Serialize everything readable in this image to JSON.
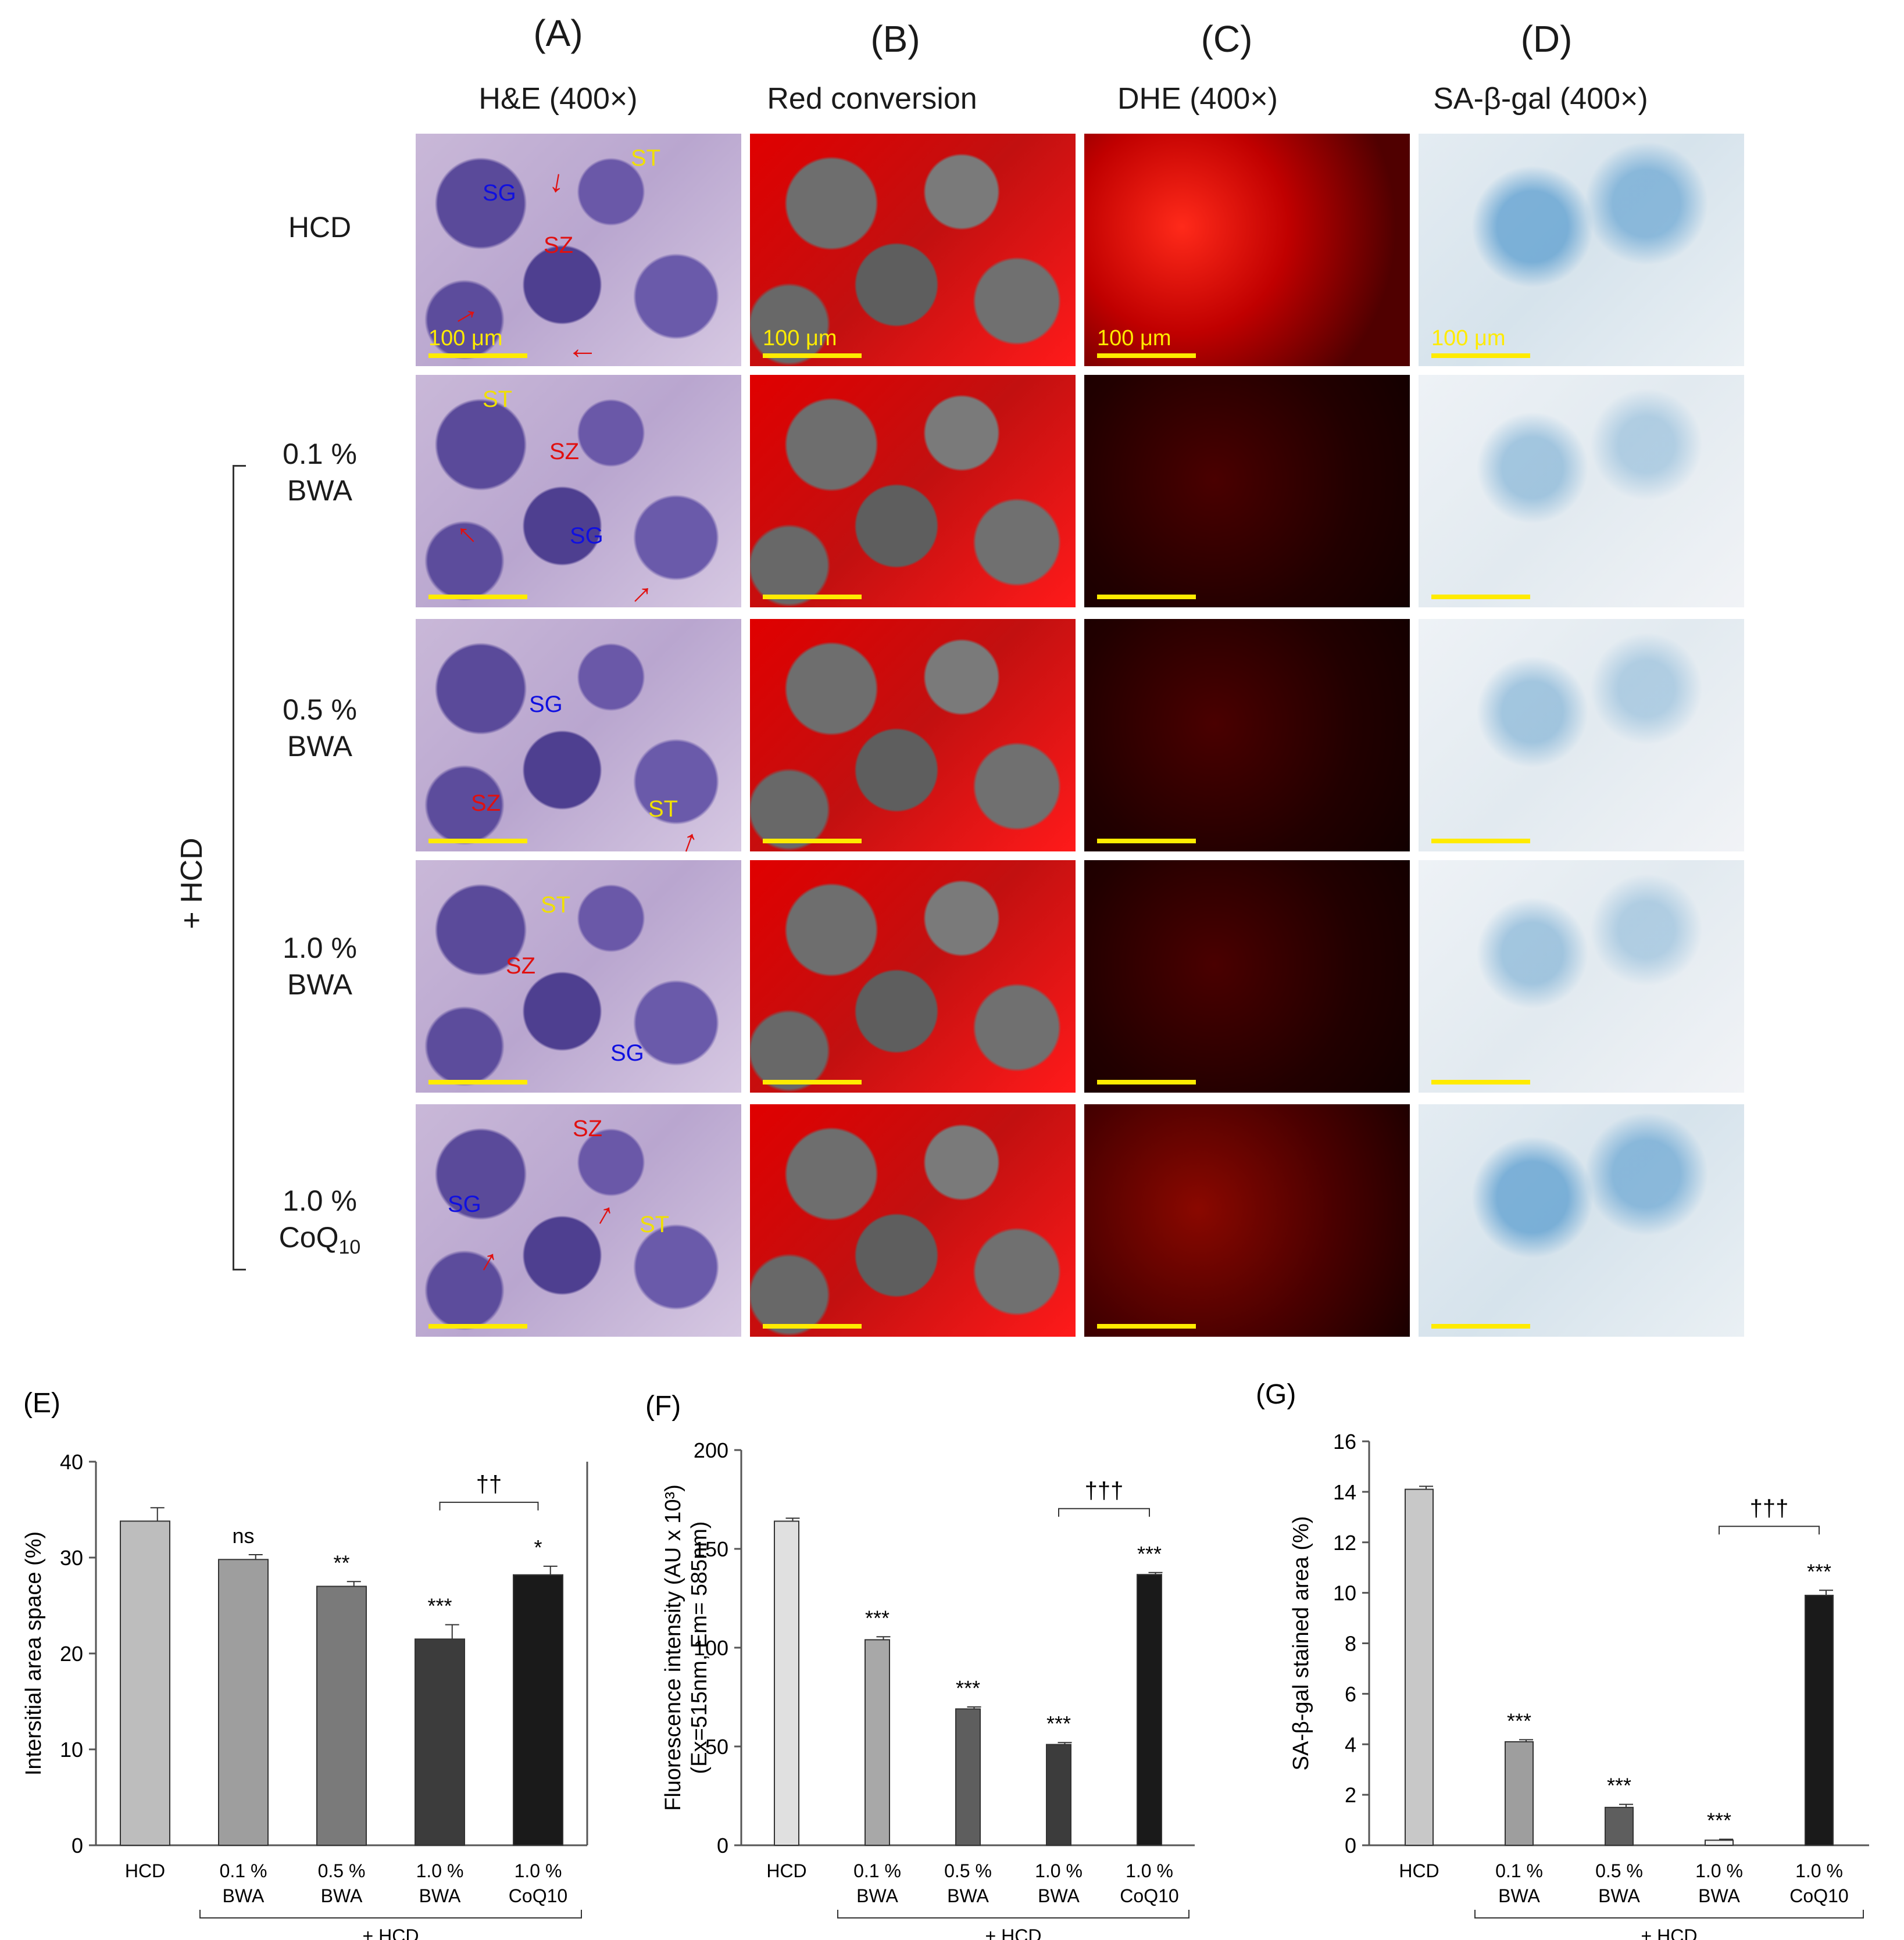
{
  "panels": {
    "A": {
      "letter": "(A)",
      "title": "H&E (400×)"
    },
    "B": {
      "letter": "(B)",
      "title": "Red conversion"
    },
    "C": {
      "letter": "(C)",
      "title": "DHE (400×)"
    },
    "D": {
      "letter": "(D)",
      "title": "SA-β-gal (400×)"
    }
  },
  "rows": [
    {
      "line1": "HCD",
      "line2": ""
    },
    {
      "line1": "0.1 %",
      "line2": "BWA"
    },
    {
      "line1": "0.5 %",
      "line2": "BWA"
    },
    {
      "line1": "1.0 %",
      "line2": "BWA"
    },
    {
      "line1": "1.0 %",
      "line2": "CoQ10"
    }
  ],
  "group_label": "+ HCD",
  "scale_label": "100 μm",
  "tissue_tags": {
    "st": "ST",
    "sz": "SZ",
    "sg": "SG"
  },
  "chart_data": [
    {
      "panel": "(E)",
      "type": "bar",
      "ylabel": "Intersitial area space (%)",
      "ylim": [
        0,
        40
      ],
      "yticks": [
        0,
        10,
        20,
        30,
        40
      ],
      "categories": [
        [
          "HCD",
          ""
        ],
        [
          "0.1 %",
          "BWA"
        ],
        [
          "0.5 %",
          "BWA"
        ],
        [
          "1.0 %",
          "BWA"
        ],
        [
          "1.0 %",
          "CoQ10"
        ]
      ],
      "values": [
        33.8,
        29.8,
        27.0,
        21.5,
        28.2
      ],
      "errors": [
        1.4,
        0.5,
        0.5,
        1.5,
        0.9
      ],
      "colors": [
        "#bdbdbd",
        "#9e9e9e",
        "#7a7a7a",
        "#3c3c3c",
        "#1a1a1a"
      ],
      "sig": [
        "",
        "ns",
        "**",
        "***",
        "*"
      ],
      "bracket": {
        "from": 3,
        "to": 4,
        "label": "††"
      },
      "group_label": "+ HCD"
    },
    {
      "panel": "(F)",
      "type": "bar",
      "ylabel": "Fluorescence intensity (AU x 10³)",
      "ylabel2": "(Ex=515nm, Em= 585nm)",
      "ylim": [
        0,
        200
      ],
      "yticks": [
        0,
        50,
        100,
        150,
        200
      ],
      "categories": [
        [
          "HCD",
          ""
        ],
        [
          "0.1 %",
          "BWA"
        ],
        [
          "0.5 %",
          "BWA"
        ],
        [
          "1.0 %",
          "BWA"
        ],
        [
          "1.0 %",
          "CoQ10"
        ]
      ],
      "values": [
        164,
        104,
        69,
        51,
        137
      ],
      "errors": [
        1.5,
        1.5,
        1.0,
        1.0,
        1.0
      ],
      "colors": [
        "#e0e0e0",
        "#a8a8a8",
        "#5e5e5e",
        "#3c3c3c",
        "#1a1a1a"
      ],
      "sig": [
        "",
        "***",
        "***",
        "***",
        "***"
      ],
      "bracket": {
        "from": 3,
        "to": 4,
        "label": "†††"
      },
      "group_label": "+ HCD"
    },
    {
      "panel": "(G)",
      "type": "bar",
      "ylabel": "SA-β-gal stained area (%)",
      "ylim": [
        0,
        16
      ],
      "yticks": [
        0,
        2,
        4,
        6,
        8,
        10,
        12,
        14,
        16
      ],
      "categories": [
        [
          "HCD",
          ""
        ],
        [
          "0.1 %",
          "BWA"
        ],
        [
          "0.5 %",
          "BWA"
        ],
        [
          "1.0 %",
          "BWA"
        ],
        [
          "1.0 %",
          "CoQ10"
        ]
      ],
      "values": [
        14.1,
        4.1,
        1.5,
        0.2,
        9.9
      ],
      "errors": [
        0.12,
        0.08,
        0.12,
        0.04,
        0.2
      ],
      "colors": [
        "#c8c8c8",
        "#9e9e9e",
        "#5e5e5e",
        "#f2f2f2",
        "#1a1a1a"
      ],
      "sig": [
        "",
        "***",
        "***",
        "***",
        "***"
      ],
      "bracket": {
        "from": 3,
        "to": 4,
        "label": "†††"
      },
      "group_label": "+ HCD"
    }
  ]
}
